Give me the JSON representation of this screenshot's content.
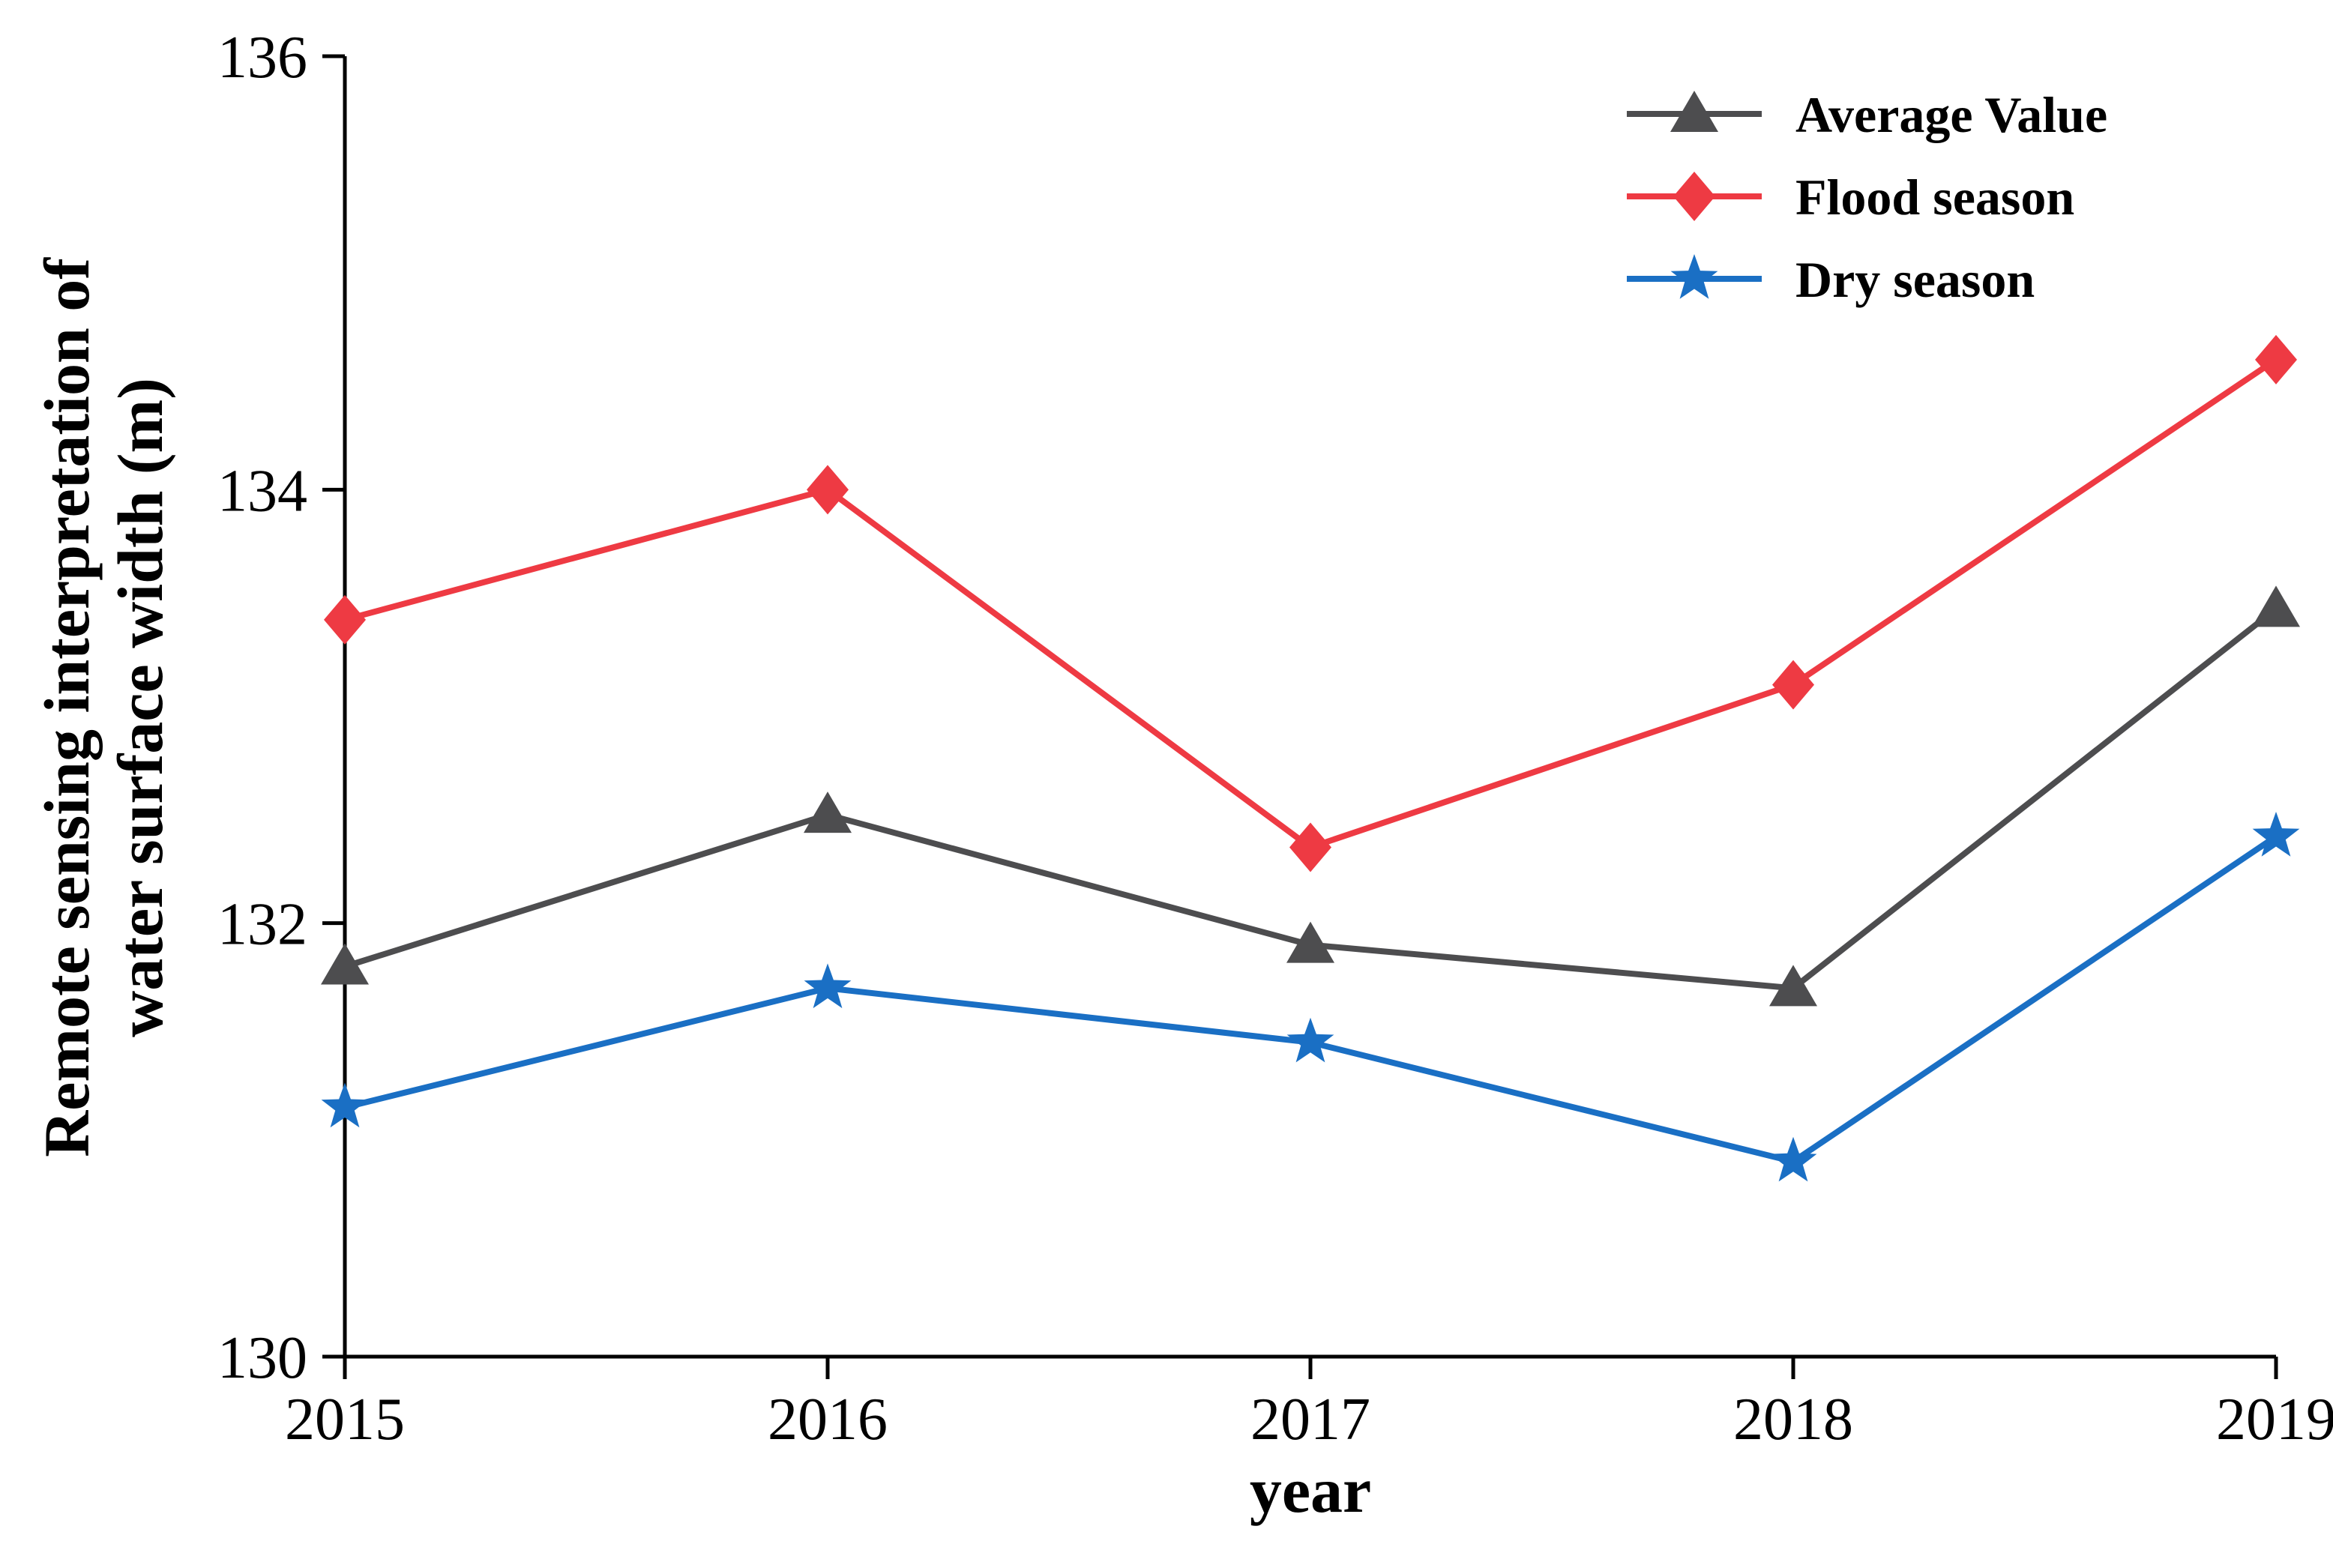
{
  "chart_data": {
    "type": "line",
    "title": "",
    "x_categories": [
      "2015",
      "2016",
      "2017",
      "2018",
      "2019"
    ],
    "series": [
      {
        "name": "Average Value",
        "color": "#4d4d4f",
        "marker": "triangle-up",
        "values": [
          131.8,
          132.5,
          131.9,
          131.7,
          133.45
        ]
      },
      {
        "name": "Flood season",
        "color": "#ee3a43",
        "marker": "diamond",
        "values": [
          133.4,
          134.0,
          132.35,
          133.1,
          134.6
        ]
      },
      {
        "name": "Dry season",
        "color": "#1a6fc4",
        "marker": "star",
        "values": [
          131.15,
          131.7,
          131.45,
          130.9,
          132.4
        ]
      }
    ],
    "xlabel": "year",
    "ylabel": "Remote sensing interpretation of water surface width (m)",
    "ylabel_lines": [
      "Remote sensing interpretation of",
      "water surface width (m)"
    ],
    "ylim": [
      130,
      136
    ],
    "yticks": [
      "130",
      "132",
      "134",
      "136"
    ],
    "grid": false,
    "legend": {
      "position": "top-right",
      "entries": [
        "Average Value",
        "Flood season",
        "Dry season"
      ]
    },
    "axis_color": "#000000"
  }
}
